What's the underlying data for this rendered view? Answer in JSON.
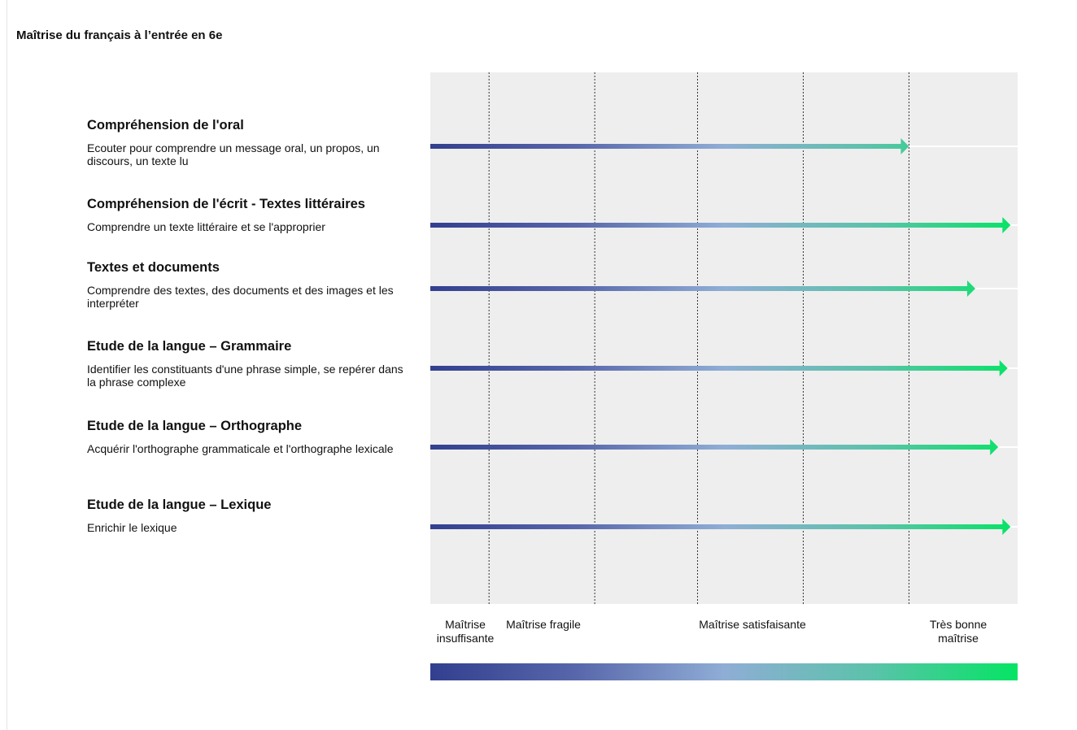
{
  "page_title": "Maîtrise du français à l’entrée en 6e",
  "colors": {
    "gradient_start": "#323f8f",
    "gradient_mid": "#8fadd5",
    "gradient_end": "#05e464",
    "plot_bg": "#eeeeee"
  },
  "chart_data": {
    "type": "bar",
    "orientation": "horizontal",
    "title": "",
    "xlim": [
      0,
      100
    ],
    "levels": [
      {
        "label": "Maîtrise insuffisante",
        "start": 0,
        "end": 10
      },
      {
        "label": "Maîtrise fragile",
        "start": 10,
        "end": 28
      },
      {
        "label": "Maîtrise satisfaisante",
        "start": 28,
        "end": 82
      },
      {
        "label": "Très bonne maîtrise",
        "start": 82,
        "end": 100
      }
    ],
    "grid_positions": [
      10,
      28,
      45.5,
      63.5,
      81.5
    ],
    "categories": [
      {
        "title": "Compréhension de l'oral",
        "description": "Ecouter pour comprendre un message oral, un propos, un discours, un texte lu",
        "value": 81.5
      },
      {
        "title": "Compréhension de l'écrit - Textes littéraires",
        "description": "Comprendre un texte littéraire et se l'approprier",
        "value": 98.8
      },
      {
        "title": "Textes et documents",
        "description": "Comprendre des textes, des documents et des images et les interpréter",
        "value": 92.8
      },
      {
        "title": "Etude de la langue – Grammaire",
        "description": "Identifier les constituants d'une phrase simple, se repérer dans la phrase complexe",
        "value": 98.3
      },
      {
        "title": "Etude de la langue – Orthographe",
        "description": "Acquérir l'orthographe grammaticale et l'orthographe lexicale",
        "value": 96.7
      },
      {
        "title": "Etude de la langue – Lexique",
        "description": "Enrichir le lexique",
        "value": 98.8
      }
    ],
    "level_axis_labels": [
      "Maîtrise\ninsuffisante",
      "Maîtrise fragile",
      "Maîtrise satisfaisante",
      "Très bonne\nmaîtrise"
    ]
  }
}
